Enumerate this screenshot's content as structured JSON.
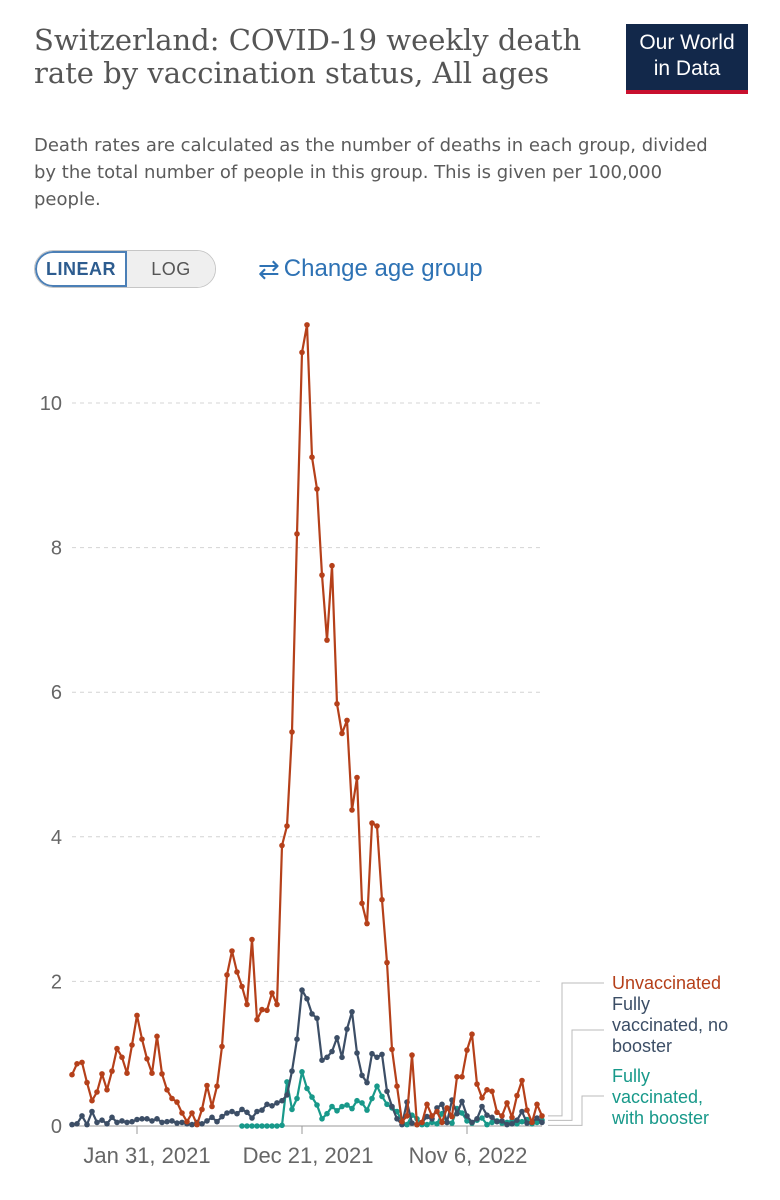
{
  "header": {
    "title": "Switzerland: COVID-19 weekly death rate by vaccination status, All ages",
    "subtitle": "Death rates are calculated as the number of deaths in each group, divided by the total number of people in this group. This is given per 100,000 people.",
    "logo_line1": "Our World",
    "logo_line2": "in Data"
  },
  "controls": {
    "linear_label": "LINEAR",
    "log_label": "LOG",
    "active_scale": "linear",
    "change_age_label": "Change age group",
    "change_age_icon": "swap-arrows-icon"
  },
  "colors": {
    "unvaccinated": "#b5401a",
    "fully_no_booster": "#3c4e66",
    "fully_booster": "#18998a",
    "grid": "#d4d4d4",
    "axis": "#999999"
  },
  "chart_data": {
    "type": "line",
    "title": "Switzerland: COVID-19 weekly death rate by vaccination status, All ages",
    "xlabel": "",
    "ylabel": "",
    "ylim": [
      0,
      11.2
    ],
    "yticks": [
      0,
      2,
      4,
      6,
      8,
      10
    ],
    "ytick_labels": [
      "0",
      "2",
      "4",
      "6",
      "8",
      "10"
    ],
    "xticks": [
      "Jan 31, 2021",
      "Dec 21, 2021",
      "Nov 6, 2022"
    ],
    "grid": true,
    "legend_placement": "right",
    "week_count": 95,
    "series": [
      {
        "name": "Unvaccinated",
        "color": "#b5401a",
        "values": [
          0.71,
          0.86,
          0.88,
          0.6,
          0.35,
          0.47,
          0.72,
          0.5,
          0.76,
          1.07,
          0.95,
          0.73,
          1.12,
          1.53,
          1.2,
          0.93,
          0.73,
          1.24,
          0.72,
          0.5,
          0.38,
          0.33,
          0.18,
          0.06,
          0.18,
          0.02,
          0.23,
          0.56,
          0.27,
          0.55,
          1.1,
          2.09,
          2.42,
          2.13,
          1.93,
          1.68,
          2.58,
          1.47,
          1.61,
          1.6,
          1.84,
          1.68,
          3.88,
          4.15,
          5.45,
          8.19,
          10.7,
          11.08,
          9.25,
          8.81,
          7.62,
          6.72,
          7.75,
          5.84,
          5.43,
          5.61,
          4.37,
          4.82,
          3.08,
          2.8,
          4.19,
          4.15,
          3.13,
          2.26,
          1.06,
          0.55,
          0.06,
          0.14,
          0.98,
          0.02,
          0.05,
          0.3,
          0.14,
          0.2,
          0.05,
          0.25,
          0.13,
          0.68,
          0.68,
          1.05,
          1.27,
          0.58,
          0.39,
          0.5,
          0.48,
          0.19,
          0.14,
          0.32,
          0.12,
          0.42,
          0.63,
          0.22,
          0.05,
          0.3,
          0.14
        ]
      },
      {
        "name": "Fully vaccinated, no booster",
        "color": "#3c4e66",
        "values": [
          0.02,
          0.03,
          0.14,
          0.02,
          0.2,
          0.05,
          0.08,
          0.03,
          0.12,
          0.05,
          0.07,
          0.05,
          0.06,
          0.09,
          0.1,
          0.1,
          0.07,
          0.1,
          0.05,
          0.06,
          0.07,
          0.04,
          0.05,
          0.03,
          0.02,
          0.05,
          0.03,
          0.07,
          0.12,
          0.06,
          0.13,
          0.18,
          0.2,
          0.17,
          0.23,
          0.19,
          0.11,
          0.2,
          0.22,
          0.3,
          0.28,
          0.32,
          0.35,
          0.43,
          0.76,
          1.2,
          1.88,
          1.76,
          1.55,
          1.49,
          0.91,
          0.95,
          1.03,
          1.22,
          0.95,
          1.34,
          1.58,
          1.01,
          0.7,
          0.6,
          1.0,
          0.95,
          0.99,
          0.48,
          0.27,
          0.1,
          0.02,
          0.33,
          0.04,
          0.02,
          0.05,
          0.13,
          0.1,
          0.25,
          0.3,
          0.05,
          0.36,
          0.17,
          0.34,
          0.14,
          0.05,
          0.1,
          0.27,
          0.15,
          0.12,
          0.06,
          0.07,
          0.02,
          0.03,
          0.08,
          0.2,
          0.04,
          0.05,
          0.11,
          0.05
        ]
      },
      {
        "name": "Fully vaccinated, with booster",
        "color": "#18998a",
        "start_index": 34,
        "values": [
          0.0,
          0.0,
          0.0,
          0.0,
          0.0,
          0.0,
          0.0,
          0.0,
          0.01,
          0.61,
          0.23,
          0.38,
          0.75,
          0.52,
          0.4,
          0.29,
          0.1,
          0.17,
          0.27,
          0.21,
          0.27,
          0.29,
          0.24,
          0.35,
          0.32,
          0.22,
          0.38,
          0.55,
          0.41,
          0.3,
          0.25,
          0.2,
          0.06,
          0.02,
          0.15,
          0.1,
          0.02,
          0.02,
          0.05,
          0.03,
          0.17,
          0.05,
          0.04,
          0.24,
          0.18,
          0.07,
          0.04,
          0.08,
          0.11,
          0.02,
          0.05,
          0.07,
          0.04,
          0.05,
          0.07,
          0.03,
          0.06,
          0.09,
          0.03,
          0.05,
          0.08
        ]
      }
    ]
  },
  "legend": {
    "unvaccinated": [
      "Unvaccinated"
    ],
    "fully_no_booster": [
      "Fully",
      "vaccinated, no",
      "booster"
    ],
    "fully_booster": [
      "Fully",
      "vaccinated,",
      "with booster"
    ]
  }
}
